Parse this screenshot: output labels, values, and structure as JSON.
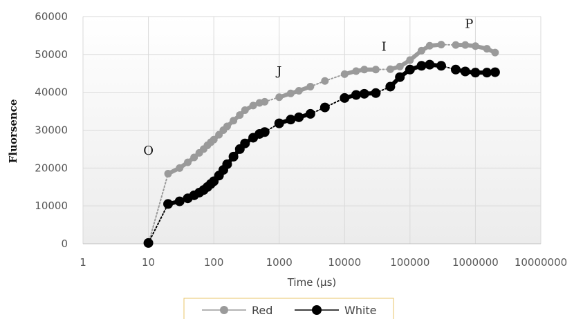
{
  "chart_data": {
    "type": "scatter",
    "xlabel": "Time (µs)",
    "ylabel": "Fluorsence",
    "x_scale": "log",
    "xlim": [
      1,
      10000000
    ],
    "ylim": [
      0,
      60000
    ],
    "x_ticks": [
      "1",
      "10",
      "100",
      "1000",
      "10000",
      "100000",
      "1000000",
      "10000000"
    ],
    "y_ticks": [
      "0",
      "10000",
      "20000",
      "30000",
      "40000",
      "50000",
      "60000"
    ],
    "grid": true,
    "legend_position": "bottom",
    "annotations": [
      {
        "text": "O",
        "x": 10,
        "y": 23500
      },
      {
        "text": "J",
        "x": 1000,
        "y": 44500
      },
      {
        "text": "I",
        "x": 40000,
        "y": 51000
      },
      {
        "text": "P",
        "x": 800000,
        "y": 57000
      }
    ],
    "series": [
      {
        "name": "Red",
        "color": "#9a9a9a",
        "x": [
          10,
          20,
          30,
          40,
          50,
          60,
          70,
          80,
          90,
          100,
          120,
          140,
          160,
          200,
          250,
          300,
          400,
          500,
          600,
          1000,
          1500,
          2000,
          3000,
          5000,
          10000,
          15000,
          20000,
          30000,
          50000,
          70000,
          100000,
          150000,
          200000,
          300000,
          500000,
          700000,
          1000000,
          1500000,
          2000000
        ],
        "y": [
          0,
          18500,
          20000,
          21500,
          22800,
          24000,
          25000,
          26000,
          26800,
          27500,
          28800,
          30000,
          31000,
          32500,
          34000,
          35300,
          36500,
          37200,
          37500,
          38700,
          39700,
          40400,
          41500,
          43000,
          44800,
          45600,
          46000,
          46000,
          46100,
          46800,
          48500,
          51000,
          52300,
          52600,
          52500,
          52500,
          52200,
          51500,
          50500
        ]
      },
      {
        "name": "White",
        "color": "#000000",
        "x": [
          10,
          20,
          30,
          40,
          50,
          60,
          70,
          80,
          90,
          100,
          120,
          140,
          160,
          200,
          250,
          300,
          400,
          500,
          600,
          1000,
          1500,
          2000,
          3000,
          5000,
          10000,
          15000,
          20000,
          30000,
          50000,
          70000,
          100000,
          150000,
          200000,
          300000,
          500000,
          700000,
          1000000,
          1500000,
          2000000
        ],
        "y": [
          200,
          10500,
          11200,
          12000,
          12800,
          13500,
          14200,
          15000,
          15800,
          16500,
          18000,
          19500,
          21000,
          23000,
          25000,
          26500,
          28000,
          29000,
          29500,
          31800,
          32800,
          33400,
          34300,
          36000,
          38500,
          39300,
          39600,
          39800,
          41500,
          44000,
          46000,
          47000,
          47300,
          47000,
          46000,
          45500,
          45200,
          45200,
          45300
        ]
      }
    ]
  }
}
